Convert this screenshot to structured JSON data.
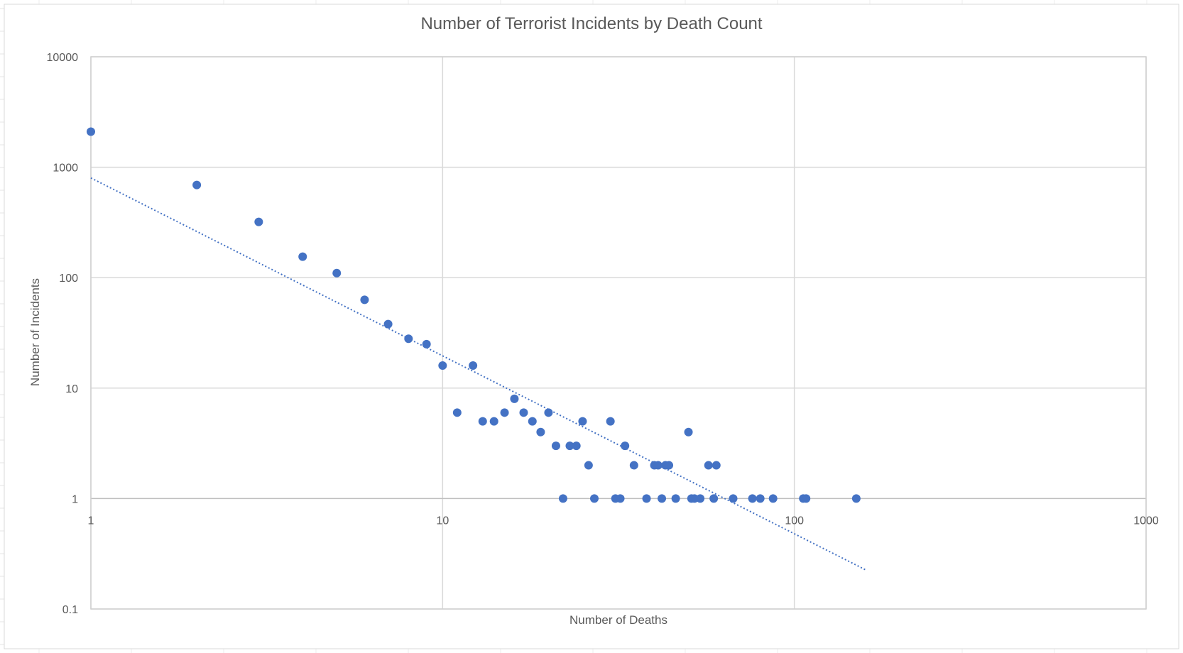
{
  "chart_data": {
    "type": "scatter",
    "title": "Number of Terrorist Incidents by Death Count",
    "xlabel": "Number of Deaths",
    "ylabel": "Number of Incidents",
    "x_scale": "log",
    "y_scale": "log",
    "xlim": [
      1,
      1000
    ],
    "ylim": [
      0.1,
      10000
    ],
    "x_ticks": [
      "1",
      "10",
      "100",
      "1000"
    ],
    "y_ticks": [
      "0.1",
      "1",
      "10",
      "100",
      "1000",
      "10000"
    ],
    "grid": true,
    "legend": "none",
    "marker_color": "#4472C4",
    "trendline": {
      "type": "power",
      "style": "dotted",
      "color": "#4472C4",
      "points": [
        [
          1,
          800
        ],
        [
          160,
          0.225
        ]
      ]
    },
    "points": [
      [
        1,
        2100
      ],
      [
        2,
        690
      ],
      [
        3,
        320
      ],
      [
        4,
        155
      ],
      [
        5,
        110
      ],
      [
        6,
        63
      ],
      [
        7,
        38
      ],
      [
        8,
        28
      ],
      [
        9,
        25
      ],
      [
        10,
        16
      ],
      [
        11,
        6
      ],
      [
        12.2,
        16
      ],
      [
        13,
        5
      ],
      [
        14,
        5
      ],
      [
        15,
        6
      ],
      [
        16,
        8
      ],
      [
        17,
        6
      ],
      [
        18,
        5
      ],
      [
        19,
        4
      ],
      [
        20,
        6
      ],
      [
        21,
        3
      ],
      [
        22,
        1
      ],
      [
        23,
        3
      ],
      [
        24,
        3
      ],
      [
        25,
        5
      ],
      [
        26,
        2
      ],
      [
        27,
        1
      ],
      [
        30,
        5
      ],
      [
        31,
        1
      ],
      [
        32,
        1
      ],
      [
        33,
        3
      ],
      [
        35,
        2
      ],
      [
        38,
        1
      ],
      [
        40,
        2
      ],
      [
        41,
        2
      ],
      [
        42,
        1
      ],
      [
        43,
        2
      ],
      [
        44,
        2
      ],
      [
        46,
        1
      ],
      [
        50,
        4
      ],
      [
        51,
        1
      ],
      [
        52,
        1
      ],
      [
        54,
        1
      ],
      [
        57,
        2
      ],
      [
        59,
        1
      ],
      [
        60,
        2
      ],
      [
        67,
        1
      ],
      [
        76,
        1
      ],
      [
        80,
        1
      ],
      [
        87,
        1
      ],
      [
        106,
        1
      ],
      [
        108,
        1
      ],
      [
        150,
        1
      ]
    ]
  }
}
